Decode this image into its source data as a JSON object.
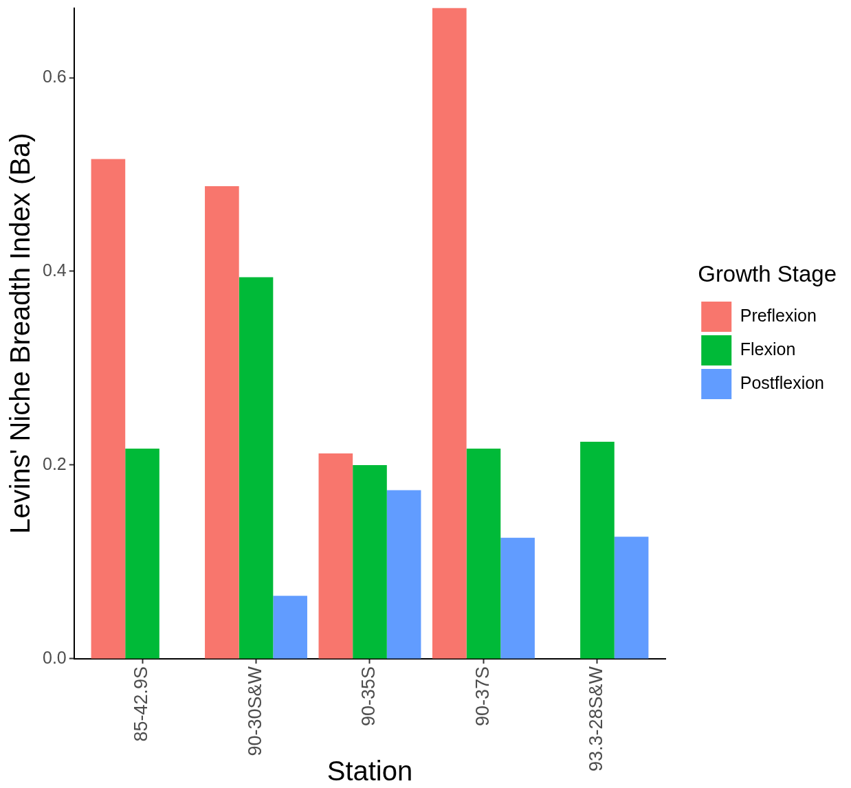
{
  "chart_data": {
    "type": "bar",
    "xlabel": "Station",
    "ylabel": "Levins' Niche Breadth Index (Ba)",
    "legend_title": "Growth Stage",
    "categories": [
      "85-42.9S",
      "90-30S&W",
      "90-35S",
      "90-37S",
      "93.3-28S&W"
    ],
    "series": [
      {
        "name": "Preflexion",
        "color": "#f8766d",
        "values": [
          0.516,
          0.488,
          0.212,
          0.672,
          null
        ]
      },
      {
        "name": "Flexion",
        "color": "#00ba38",
        "values": [
          0.217,
          0.394,
          0.2,
          0.217,
          0.224
        ]
      },
      {
        "name": "Postflexion",
        "color": "#619cff",
        "values": [
          null,
          0.065,
          0.174,
          0.125,
          0.126
        ]
      }
    ],
    "ylim": [
      0,
      0.672
    ],
    "yticks": [
      {
        "value": 0,
        "label": "0.0"
      },
      0.2,
      0.4,
      0.6
    ],
    "grid": false,
    "legend": "right"
  }
}
